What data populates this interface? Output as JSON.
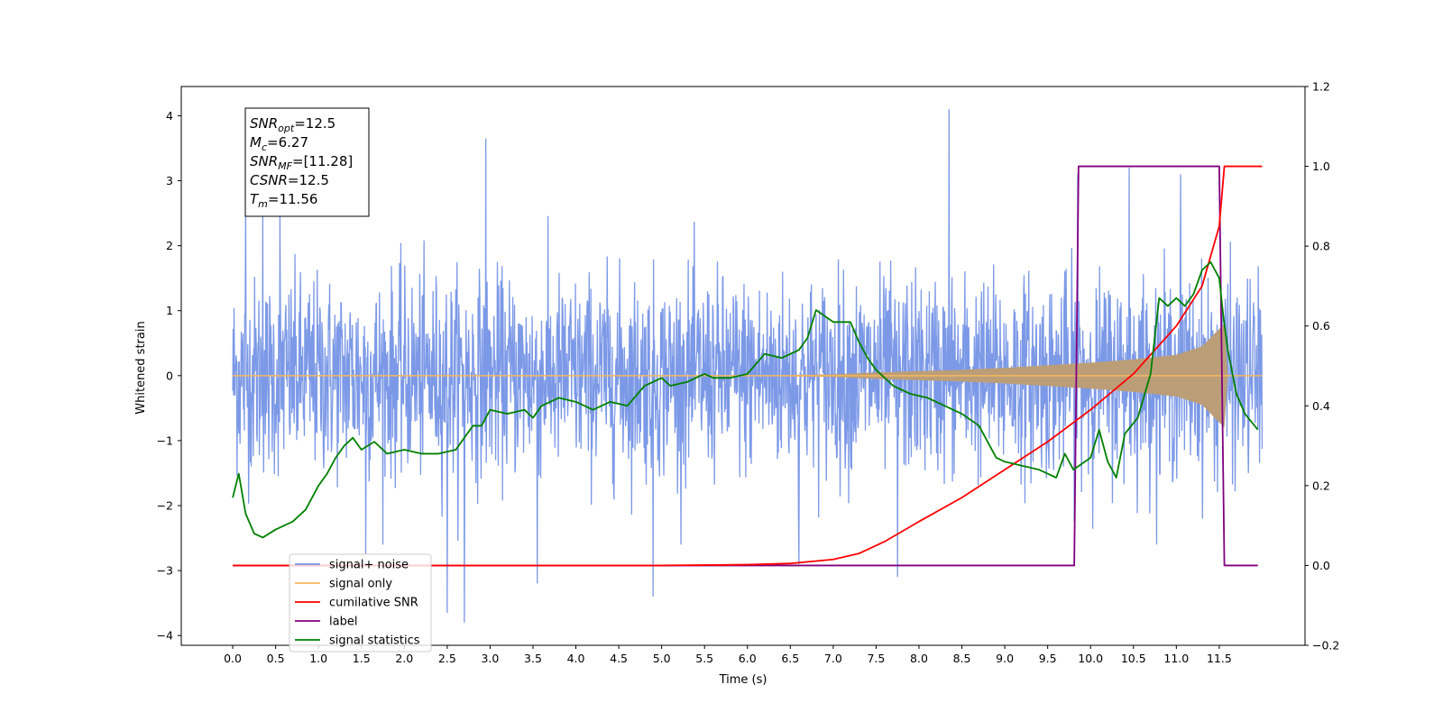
{
  "chart_data": {
    "type": "line",
    "xlabel": "Time (s)",
    "ylabel": "Whitened strain",
    "xlim": [
      -0.6,
      12.5
    ],
    "ylim": [
      -4.15,
      4.45
    ],
    "y2lim": [
      -0.2,
      1.2
    ],
    "x_ticks": [
      0.0,
      0.5,
      1.0,
      1.5,
      2.0,
      2.5,
      3.0,
      3.5,
      4.0,
      4.5,
      5.0,
      5.5,
      6.0,
      6.5,
      7.0,
      7.5,
      8.0,
      8.5,
      9.0,
      9.5,
      10.0,
      10.5,
      11.0,
      11.5
    ],
    "y_ticks": [
      -4,
      -3,
      -2,
      -1,
      0,
      1,
      2,
      3,
      4
    ],
    "y2_ticks": [
      -0.2,
      0.0,
      0.2,
      0.4,
      0.6,
      0.8,
      1.0,
      1.2
    ],
    "grid": false,
    "legend_location": "lower-left",
    "annotation": {
      "lines": [
        {
          "sym": "SNR",
          "sub": "opt",
          "value": "=12.5"
        },
        {
          "sym": "M",
          "sub": "c",
          "value": "=6.27"
        },
        {
          "sym": "SNR",
          "sub": "MF",
          "value": "=[11.28]"
        },
        {
          "sym": "CSNR",
          "sub": "",
          "value": "=12.5"
        },
        {
          "sym": "T",
          "sub": "m",
          "value": "=11.56"
        }
      ]
    },
    "series": [
      {
        "name": "signal+ noise",
        "axis": "left",
        "color": "#7593e6",
        "description_of_values": "noise band",
        "band_low": -1.8,
        "band_high": 1.8,
        "peaks": [
          [
            0.15,
            2.6
          ],
          [
            0.35,
            2.6
          ],
          [
            0.55,
            2.6
          ],
          [
            2.95,
            3.65
          ],
          [
            8.35,
            4.1
          ],
          [
            4.9,
            -3.4
          ],
          [
            2.7,
            -3.8
          ],
          [
            2.5,
            -3.65
          ],
          [
            3.55,
            -3.2
          ],
          [
            7.75,
            -3.1
          ],
          [
            9.85,
            3.1
          ],
          [
            10.45,
            3.2
          ],
          [
            11.05,
            3.1
          ],
          [
            1.55,
            -2.75
          ],
          [
            6.6,
            -2.9
          ]
        ]
      },
      {
        "name": "signal only",
        "axis": "left",
        "color": "#f4b860",
        "envelope": [
          [
            0.0,
            0.0
          ],
          [
            6.0,
            0.003
          ],
          [
            7.0,
            0.02
          ],
          [
            7.5,
            0.05
          ],
          [
            8.0,
            0.07
          ],
          [
            8.5,
            0.09
          ],
          [
            9.0,
            0.12
          ],
          [
            9.5,
            0.16
          ],
          [
            10.0,
            0.2
          ],
          [
            10.5,
            0.25
          ],
          [
            11.0,
            0.32
          ],
          [
            11.3,
            0.45
          ],
          [
            11.5,
            0.72
          ],
          [
            11.56,
            0.8
          ],
          [
            11.6,
            0.0
          ],
          [
            12.0,
            0.0
          ]
        ]
      },
      {
        "name": "cumilative SNR",
        "axis": "right",
        "color": "#ff0000",
        "x": [
          0.0,
          5.0,
          6.0,
          6.5,
          7.0,
          7.3,
          7.6,
          8.0,
          8.5,
          9.0,
          9.5,
          10.0,
          10.5,
          11.0,
          11.3,
          11.5,
          11.56,
          12.0
        ],
        "y": [
          0.0,
          0.0,
          0.002,
          0.005,
          0.015,
          0.03,
          0.06,
          0.11,
          0.17,
          0.24,
          0.31,
          0.39,
          0.48,
          0.6,
          0.7,
          0.85,
          1.0,
          1.0
        ]
      },
      {
        "name": "label",
        "axis": "right",
        "color": "#800080",
        "x": [
          0.0,
          9.81,
          9.86,
          11.5,
          11.56,
          11.95
        ],
        "y": [
          0.0,
          0.0,
          1.0,
          1.0,
          0.0,
          0.0
        ]
      },
      {
        "name": "signal statistics",
        "axis": "right",
        "color": "#008000",
        "x": [
          0.0,
          0.07,
          0.15,
          0.25,
          0.35,
          0.5,
          0.7,
          0.85,
          1.0,
          1.1,
          1.2,
          1.3,
          1.4,
          1.5,
          1.65,
          1.8,
          2.0,
          2.2,
          2.4,
          2.6,
          2.8,
          2.9,
          3.0,
          3.2,
          3.4,
          3.5,
          3.6,
          3.8,
          4.0,
          4.2,
          4.4,
          4.6,
          4.8,
          5.0,
          5.1,
          5.3,
          5.5,
          5.6,
          5.8,
          6.0,
          6.2,
          6.4,
          6.6,
          6.7,
          6.8,
          7.0,
          7.2,
          7.3,
          7.4,
          7.5,
          7.7,
          7.9,
          8.1,
          8.3,
          8.5,
          8.7,
          8.9,
          9.0,
          9.2,
          9.4,
          9.6,
          9.7,
          9.8,
          10.0,
          10.1,
          10.2,
          10.3,
          10.4,
          10.55,
          10.7,
          10.8,
          10.9,
          11.0,
          11.1,
          11.2,
          11.3,
          11.4,
          11.5,
          11.55,
          11.6,
          11.7,
          11.8,
          11.95
        ],
        "y": [
          0.17,
          0.23,
          0.13,
          0.08,
          0.07,
          0.09,
          0.11,
          0.14,
          0.2,
          0.23,
          0.27,
          0.3,
          0.32,
          0.29,
          0.31,
          0.28,
          0.29,
          0.28,
          0.28,
          0.29,
          0.35,
          0.35,
          0.39,
          0.38,
          0.39,
          0.37,
          0.4,
          0.42,
          0.41,
          0.39,
          0.41,
          0.4,
          0.45,
          0.47,
          0.45,
          0.46,
          0.48,
          0.47,
          0.47,
          0.48,
          0.53,
          0.52,
          0.54,
          0.57,
          0.64,
          0.61,
          0.61,
          0.56,
          0.52,
          0.49,
          0.45,
          0.43,
          0.42,
          0.4,
          0.38,
          0.35,
          0.27,
          0.26,
          0.25,
          0.24,
          0.22,
          0.28,
          0.24,
          0.27,
          0.34,
          0.26,
          0.22,
          0.33,
          0.37,
          0.48,
          0.67,
          0.65,
          0.67,
          0.65,
          0.68,
          0.74,
          0.76,
          0.72,
          0.62,
          0.54,
          0.43,
          0.38,
          0.34
        ]
      }
    ]
  },
  "legend": {
    "entries": [
      {
        "label": "signal+ noise",
        "color": "#7593e6"
      },
      {
        "label": "signal only",
        "color": "#f4b860"
      },
      {
        "label": "cumilative SNR",
        "color": "#ff0000"
      },
      {
        "label": "label",
        "color": "#800080"
      },
      {
        "label": "signal statistics",
        "color": "#008000"
      }
    ]
  }
}
